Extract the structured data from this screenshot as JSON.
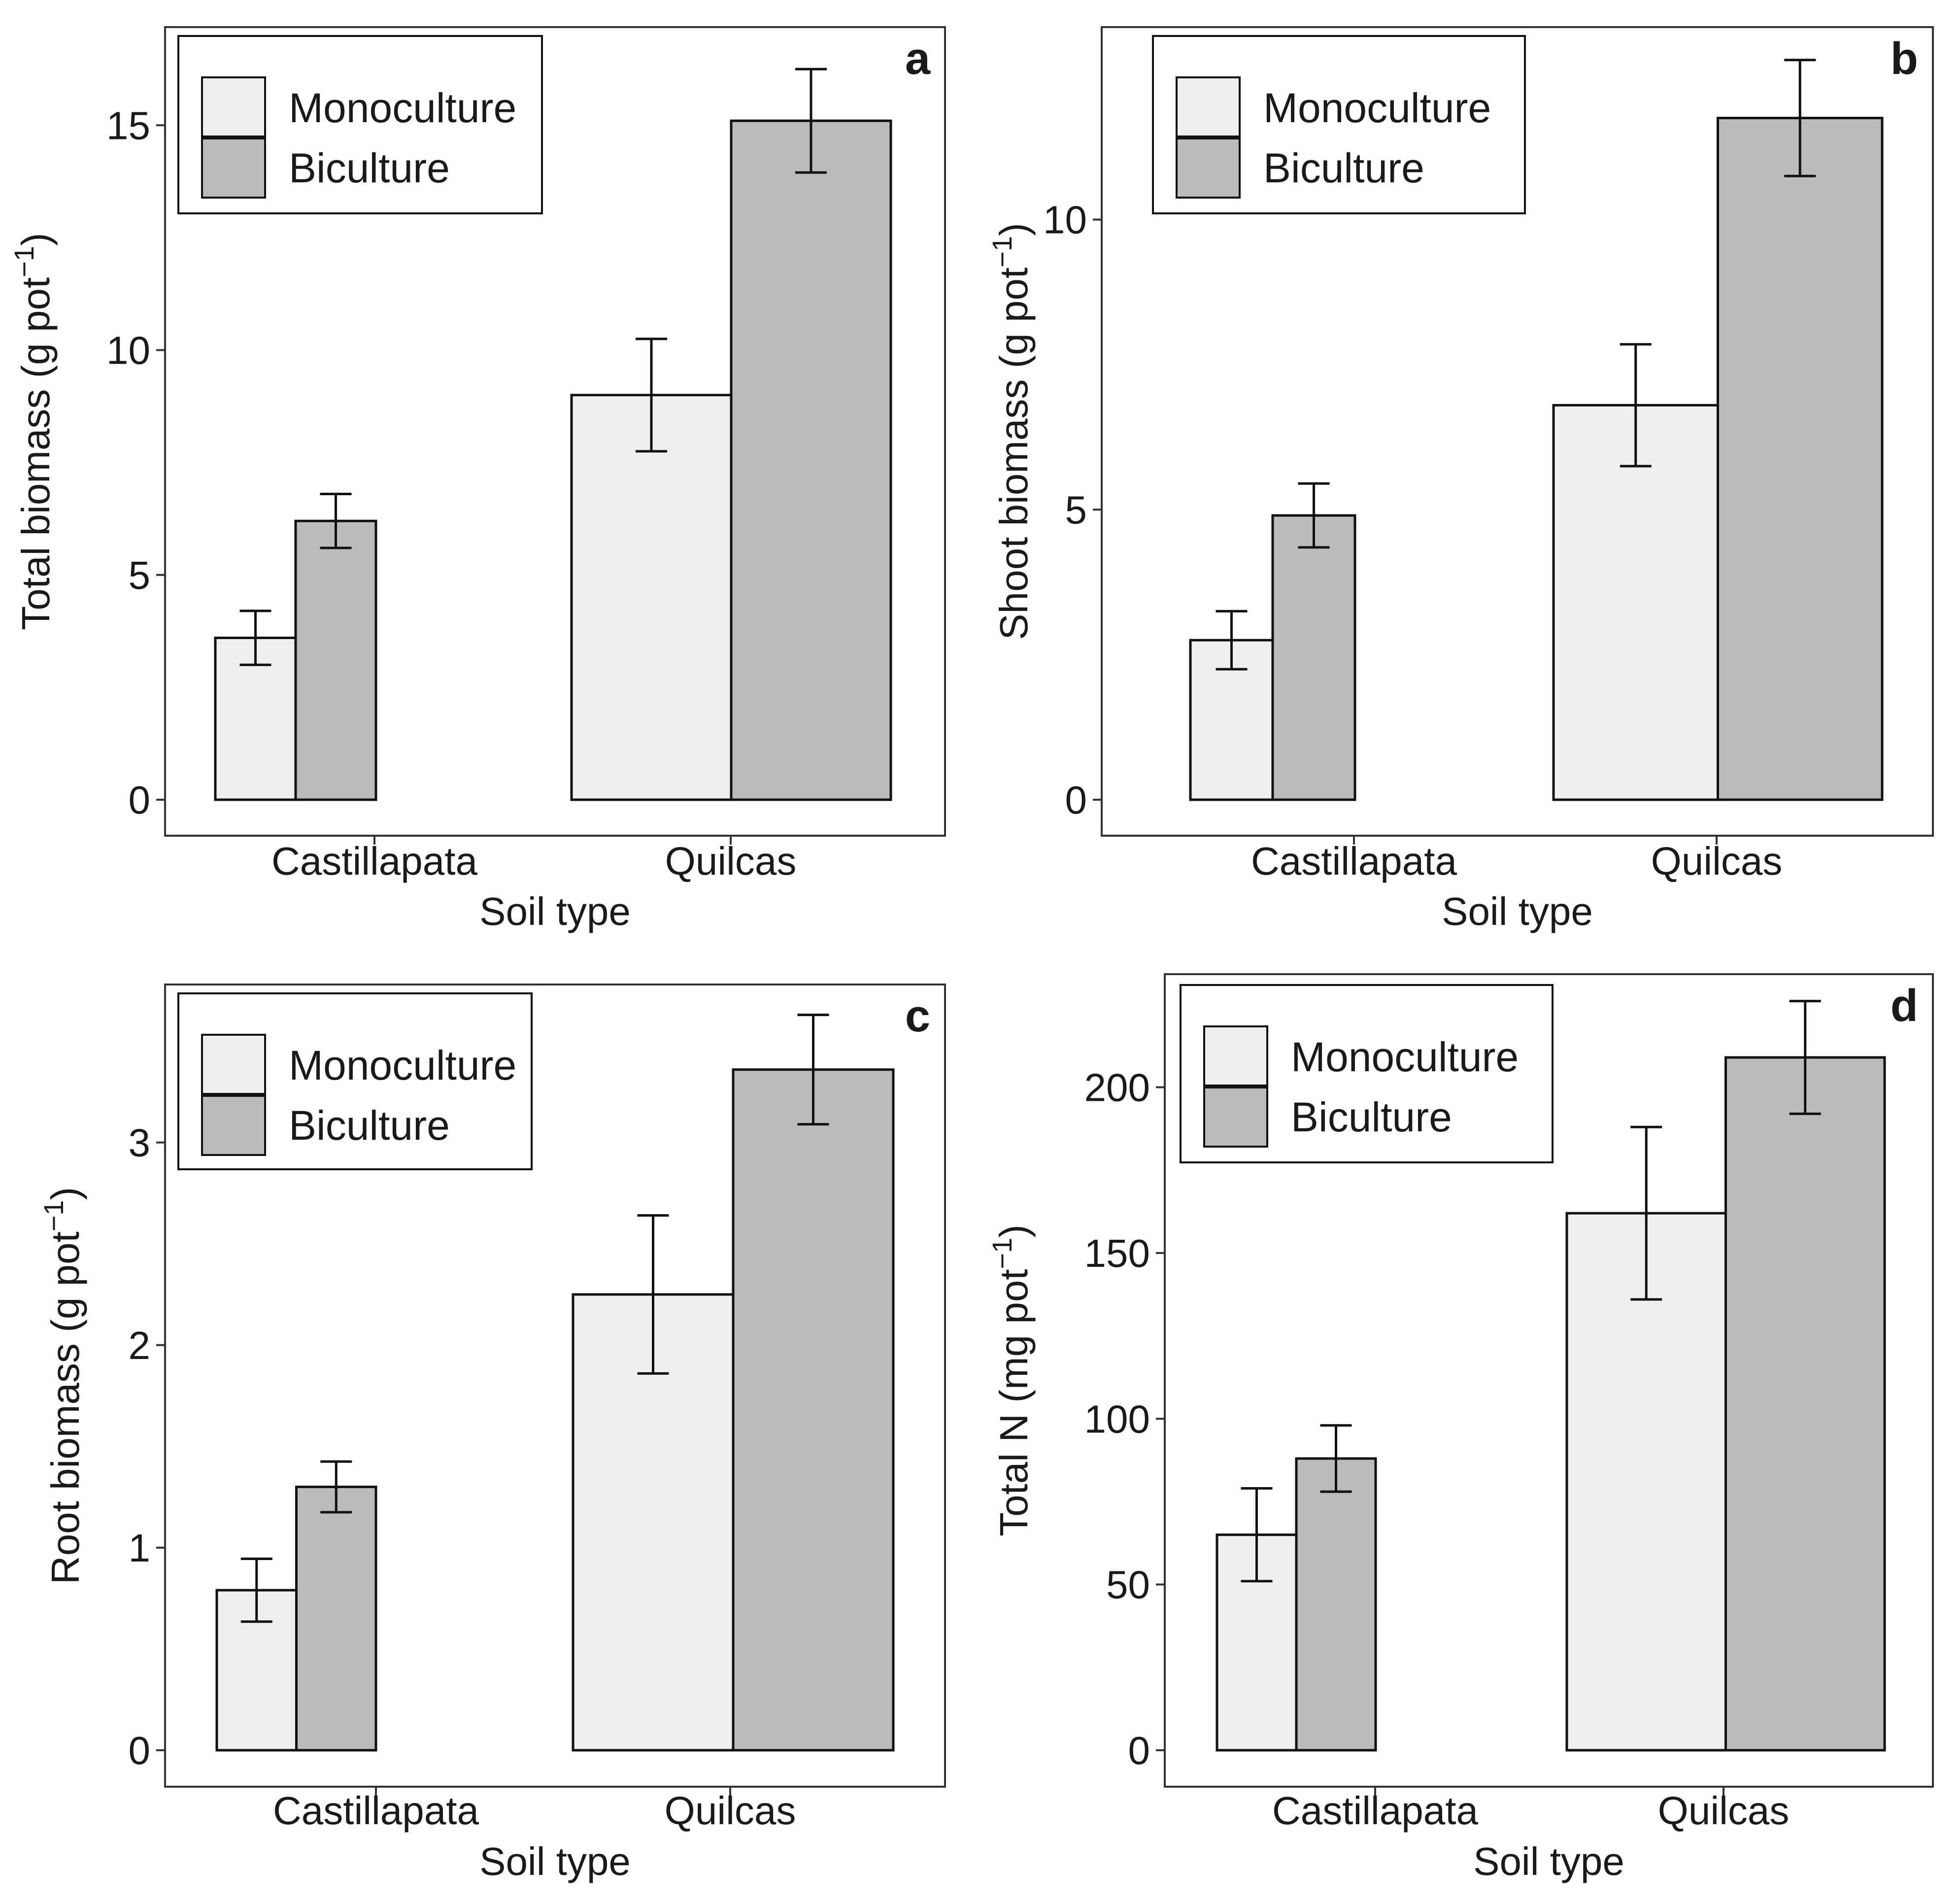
{
  "figure": {
    "colors": {
      "monoculture": "#efefef",
      "biculture": "#bbbbbb",
      "stroke": "#111111",
      "frame": "#333333"
    },
    "legend_icon": "legend-key-box"
  },
  "chart_data": [
    {
      "id": "a",
      "type": "bar",
      "panel_label": "a",
      "xlabel": "Soil type",
      "ylabel_main": "Total biomass (g pot",
      "ylabel_sup": "−1",
      "ylabel_end": ")",
      "categories": [
        "Castillapata",
        "Quilcas"
      ],
      "series": [
        {
          "name": "Monoculture",
          "values": [
            3.6,
            9.0
          ],
          "errors": [
            0.6,
            1.25
          ]
        },
        {
          "name": "Biculture",
          "values": [
            6.2,
            15.1
          ],
          "errors": [
            0.6,
            1.15
          ]
        }
      ],
      "yticks": [
        0,
        5,
        10,
        15
      ],
      "ylim": [
        -0.8,
        17.0
      ],
      "legend_position": "top-left"
    },
    {
      "id": "b",
      "type": "bar",
      "panel_label": "b",
      "xlabel": "Soil type",
      "ylabel_main": "Shoot biomass (g pot",
      "ylabel_sup": "−1",
      "ylabel_end": ")",
      "categories": [
        "Castillapata",
        "Quilcas"
      ],
      "series": [
        {
          "name": "Monoculture",
          "values": [
            2.75,
            6.8
          ],
          "errors": [
            0.5,
            1.05
          ]
        },
        {
          "name": "Biculture",
          "values": [
            4.9,
            11.75
          ],
          "errors": [
            0.55,
            1.0
          ]
        }
      ],
      "yticks": [
        0,
        5,
        10
      ],
      "ylim": [
        -0.62,
        13.3
      ],
      "legend_position": "top-left"
    },
    {
      "id": "c",
      "type": "bar",
      "panel_label": "c",
      "xlabel": "Soil type",
      "ylabel_main": "Root biomass (g pot",
      "ylabel_sup": "−1",
      "ylabel_end": ")",
      "categories": [
        "Castillapata",
        "Quilcas"
      ],
      "series": [
        {
          "name": "Monoculture",
          "values": [
            0.79,
            2.25
          ],
          "errors": [
            0.155,
            0.39
          ]
        },
        {
          "name": "Biculture",
          "values": [
            1.3,
            3.36
          ],
          "errors": [
            0.125,
            0.27
          ]
        }
      ],
      "yticks": [
        0,
        1,
        2,
        3
      ],
      "ylim": [
        -0.18,
        3.82
      ],
      "legend_position": "top-left"
    },
    {
      "id": "d",
      "type": "bar",
      "panel_label": "d",
      "xlabel": "Soil type",
      "ylabel_main": "Total N (mg pot",
      "ylabel_sup": "−1",
      "ylabel_end": ")",
      "categories": [
        "Castillapata",
        "Quilcas"
      ],
      "series": [
        {
          "name": "Monoculture",
          "values": [
            65,
            162
          ],
          "errors": [
            14,
            26
          ]
        },
        {
          "name": "Biculture",
          "values": [
            88,
            209
          ],
          "errors": [
            10,
            17
          ]
        }
      ],
      "yticks": [
        0,
        50,
        100,
        150,
        200
      ],
      "ylim": [
        -11,
        240
      ],
      "legend_position": "top-left"
    }
  ]
}
